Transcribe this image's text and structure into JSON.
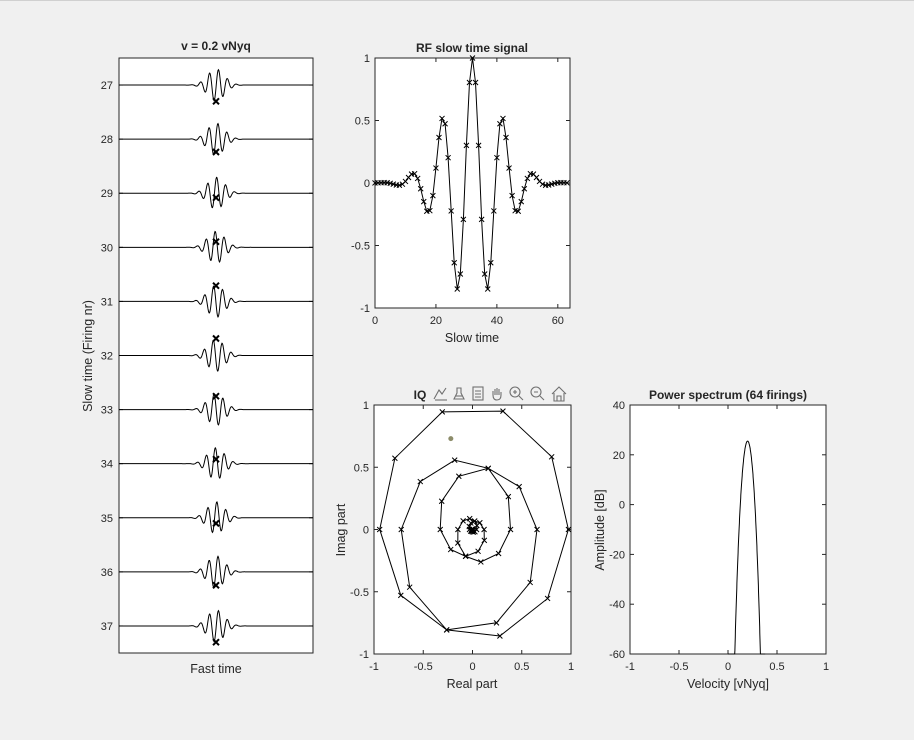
{
  "chart_data": [
    {
      "id": "waterfall",
      "type": "line",
      "title": "v = 0.2 vNyq",
      "xlabel": "Fast time",
      "ylabel": "Slow time (Firing nr)",
      "yticks": [
        "27",
        "28",
        "29",
        "30",
        "31",
        "32",
        "33",
        "34",
        "35",
        "36",
        "37"
      ],
      "ylim": [
        26.5,
        37.5
      ],
      "y_reversed": true,
      "grid": false,
      "series_description": "One RF pulse trace per firing; pulse centre moves with firing number",
      "marker_phase_offsets": [
        -0.29,
        -0.23,
        -0.08,
        0.1,
        0.28,
        0.32,
        0.24,
        0.08,
        -0.1,
        -0.24,
        -0.29
      ]
    },
    {
      "id": "rf",
      "type": "line",
      "title": "RF slow time signal",
      "xlabel": "Slow time",
      "ylabel": "",
      "xlim": [
        0,
        64
      ],
      "ylim": [
        -1,
        1
      ],
      "xticks": [
        "0",
        "20",
        "40",
        "60"
      ],
      "yticks": [
        "-1",
        "-0.5",
        "0",
        "0.5",
        "1"
      ],
      "grid": false,
      "marker": "x",
      "signal": {
        "n_samples": 64,
        "center": 32,
        "gaussian_sigma": 8.7,
        "samples_per_cycle": 10
      }
    },
    {
      "id": "iq",
      "type": "scatter",
      "title": "IQ",
      "xlabel": "Real part",
      "ylabel": "Imag part",
      "xlim": [
        -1,
        1
      ],
      "ylim": [
        -1,
        1
      ],
      "xticks": [
        "-1",
        "-0.5",
        "0",
        "0.5",
        "1"
      ],
      "yticks": [
        "-1",
        "-0.5",
        "0",
        "0.5",
        "1"
      ],
      "grid": false,
      "marker": "x",
      "highlight_point": {
        "x": -0.22,
        "y": 0.73
      },
      "description": "Complex envelope spirals out and back; 10 samples per turn"
    },
    {
      "id": "spectrum",
      "type": "line",
      "title": "Power spectrum (64 firings)",
      "xlabel": "Velocity [vNyq]",
      "ylabel": "Amplitude [dB]",
      "xlim": [
        -1,
        1
      ],
      "ylim": [
        -60,
        40
      ],
      "xticks": [
        "-1",
        "-0.5",
        "0",
        "0.5",
        "1"
      ],
      "yticks": [
        "-60",
        "-40",
        "-20",
        "0",
        "20",
        "40"
      ],
      "grid": false,
      "peak": {
        "x": 0.2,
        "y": 25.5
      },
      "curve_points": [
        {
          "x": 0.0,
          "y": -60
        },
        {
          "x": 0.05,
          "y": -19
        },
        {
          "x": 0.1,
          "y": 6
        },
        {
          "x": 0.15,
          "y": 20.5
        },
        {
          "x": 0.2,
          "y": 25.5
        },
        {
          "x": 0.25,
          "y": 20.5
        },
        {
          "x": 0.3,
          "y": 6
        },
        {
          "x": 0.35,
          "y": -19
        },
        {
          "x": 0.38,
          "y": -60
        }
      ]
    }
  ],
  "toolbar": {
    "icons": [
      "data-tips-icon",
      "brush-icon",
      "legend-icon",
      "pan-icon",
      "zoom-in-icon",
      "zoom-out-icon",
      "home-icon"
    ]
  },
  "colors": {
    "line": "#000000",
    "axes_text": "#262626",
    "highlight": "#8c8c6a",
    "background": "#f0f0f0",
    "axes_bg": "#ffffff"
  }
}
